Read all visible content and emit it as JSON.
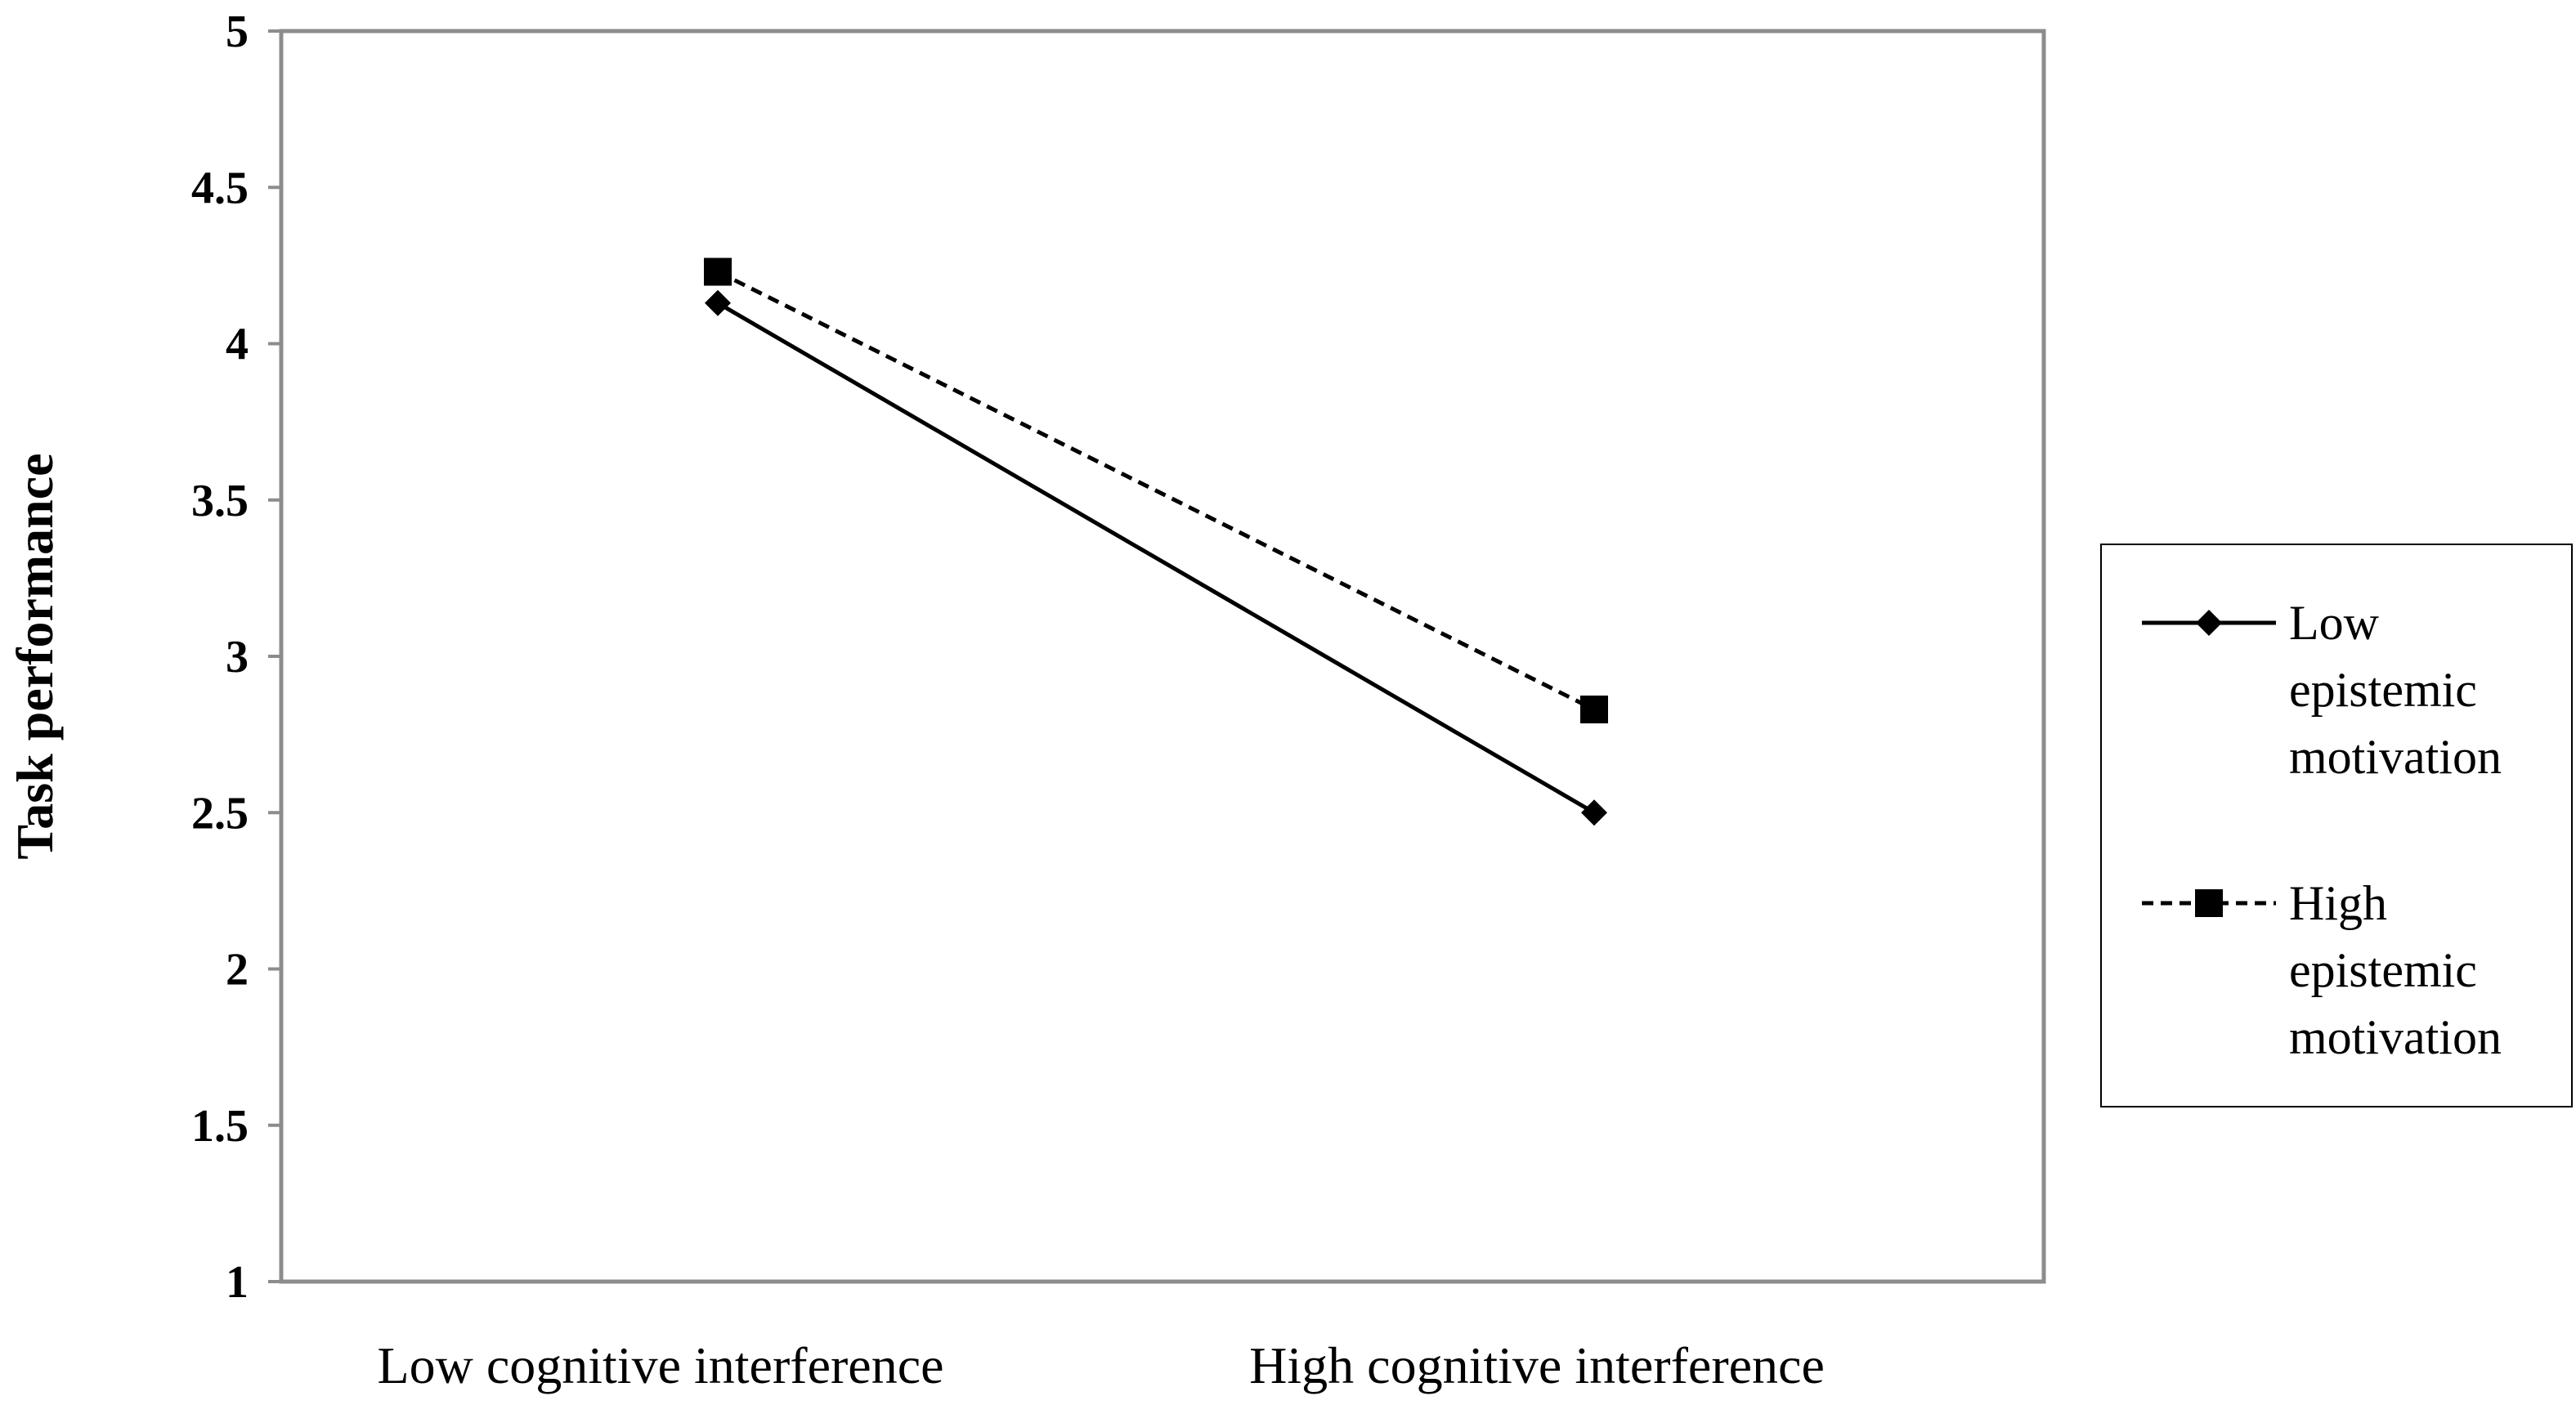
{
  "chart_data": {
    "type": "line",
    "title": "",
    "xlabel": "",
    "ylabel": "Task performance",
    "ylim": [
      1,
      5
    ],
    "yticks": [
      "1",
      "1.5",
      "2",
      "2.5",
      "3",
      "3.5",
      "4",
      "4.5",
      "5"
    ],
    "categories": [
      "Low cognitive interference",
      "High cognitive interference"
    ],
    "grid": false,
    "legend_position": "right",
    "series": [
      {
        "name_lines": [
          "Low",
          "epistemic",
          "motivation"
        ],
        "values": [
          4.13,
          2.5
        ],
        "line_style": "solid",
        "marker": "diamond",
        "color": "#000000"
      },
      {
        "name_lines": [
          "High",
          "epistemic",
          "motivation"
        ],
        "values": [
          4.23,
          2.83
        ],
        "line_style": "dashed",
        "marker": "square",
        "color": "#000000"
      }
    ]
  }
}
